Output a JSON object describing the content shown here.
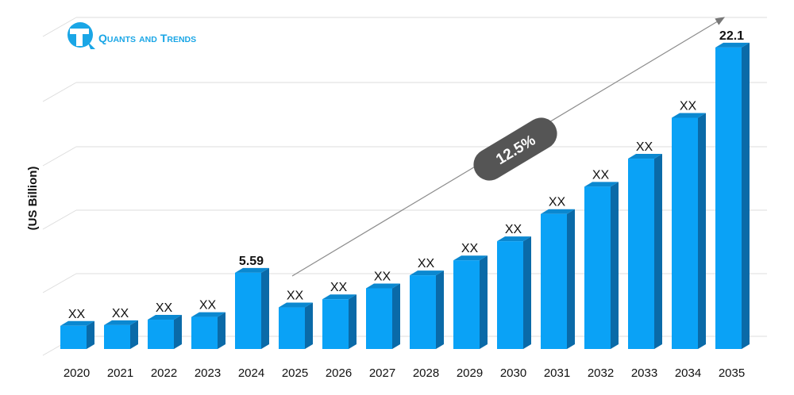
{
  "chart_data": {
    "type": "bar",
    "categories": [
      "2020",
      "2021",
      "2022",
      "2023",
      "2024",
      "2025",
      "2026",
      "2027",
      "2028",
      "2029",
      "2030",
      "2031",
      "2032",
      "2033",
      "2034",
      "2035"
    ],
    "values": [
      1.7,
      1.75,
      2.15,
      2.35,
      5.59,
      3.05,
      3.65,
      4.45,
      5.4,
      6.5,
      7.9,
      9.9,
      11.9,
      13.95,
      16.95,
      22.1
    ],
    "data_labels": [
      "XX",
      "XX",
      "XX",
      "XX",
      "5.59",
      "XX",
      "XX",
      "XX",
      "XX",
      "XX",
      "XX",
      "XX",
      "XX",
      "XX",
      "XX",
      "22.1"
    ],
    "bold_labels": [
      "5.59",
      "22.1"
    ],
    "ylabel": "(US Billion)",
    "xlabel": "",
    "title": "",
    "annotation": "12.5%",
    "grid": true,
    "bar_color": "#0aa2f6",
    "bar_side_color": "#0a6aa8",
    "bar_top_color": "#0b88d0"
  },
  "logo": {
    "text_q": "Q",
    "text_uants": "UANTS",
    "text_and": "AND",
    "text_t": "T",
    "text_rends": "RENDS",
    "color": "#1aa6e6"
  }
}
